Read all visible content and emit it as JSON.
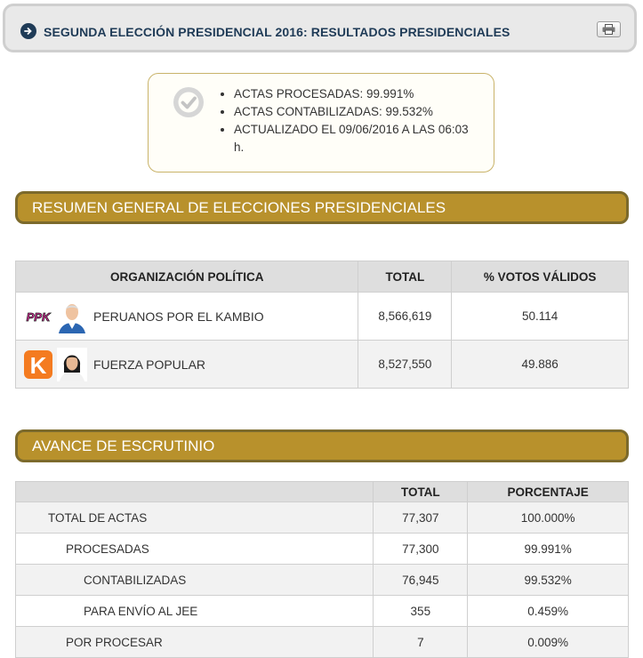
{
  "header": {
    "title": "SEGUNDA ELECCIÓN PRESIDENCIAL 2016: RESULTADOS PRESIDENCIALES",
    "icon": "arrow-circle-right-icon",
    "print_icon": "printer-icon"
  },
  "status": {
    "icon": "check-circle-icon",
    "items": [
      "ACTAS PROCESADAS: 99.991%",
      "ACTAS CONTABILIZADAS: 99.532%",
      "ACTUALIZADO EL 09/06/2016 A LAS 06:03 h."
    ]
  },
  "summary": {
    "section_title": "RESUMEN GENERAL DE ELECCIONES PRESIDENCIALES",
    "headers": [
      "ORGANIZACIÓN POLÍTICA",
      "TOTAL",
      "% VOTOS VÁLIDOS"
    ],
    "rows": [
      {
        "name": "PERUANOS POR EL KAMBIO",
        "logo_text": "PPK",
        "total": "8,566,619",
        "percent": "50.114"
      },
      {
        "name": "FUERZA POPULAR",
        "logo_text": "K",
        "total": "8,527,550",
        "percent": "49.886"
      }
    ]
  },
  "progress": {
    "section_title": "AVANCE DE ESCRUTINIO",
    "headers": [
      "",
      "TOTAL",
      "PORCENTAJE"
    ],
    "rows": [
      {
        "label": "TOTAL DE ACTAS",
        "total": "77,307",
        "percent": "100.000%"
      },
      {
        "label": "PROCESADAS",
        "total": "77,300",
        "percent": "99.991%"
      },
      {
        "label": "CONTABILIZADAS",
        "total": "76,945",
        "percent": "99.532%"
      },
      {
        "label": "PARA ENVÍO AL JEE",
        "total": "355",
        "percent": "0.459%"
      },
      {
        "label": "POR PROCESAR",
        "total": "7",
        "percent": "0.009%"
      }
    ]
  },
  "colors": {
    "section_bar": "#b8912c",
    "section_border": "#7c6a2c",
    "header_text": "#1f3b57"
  }
}
